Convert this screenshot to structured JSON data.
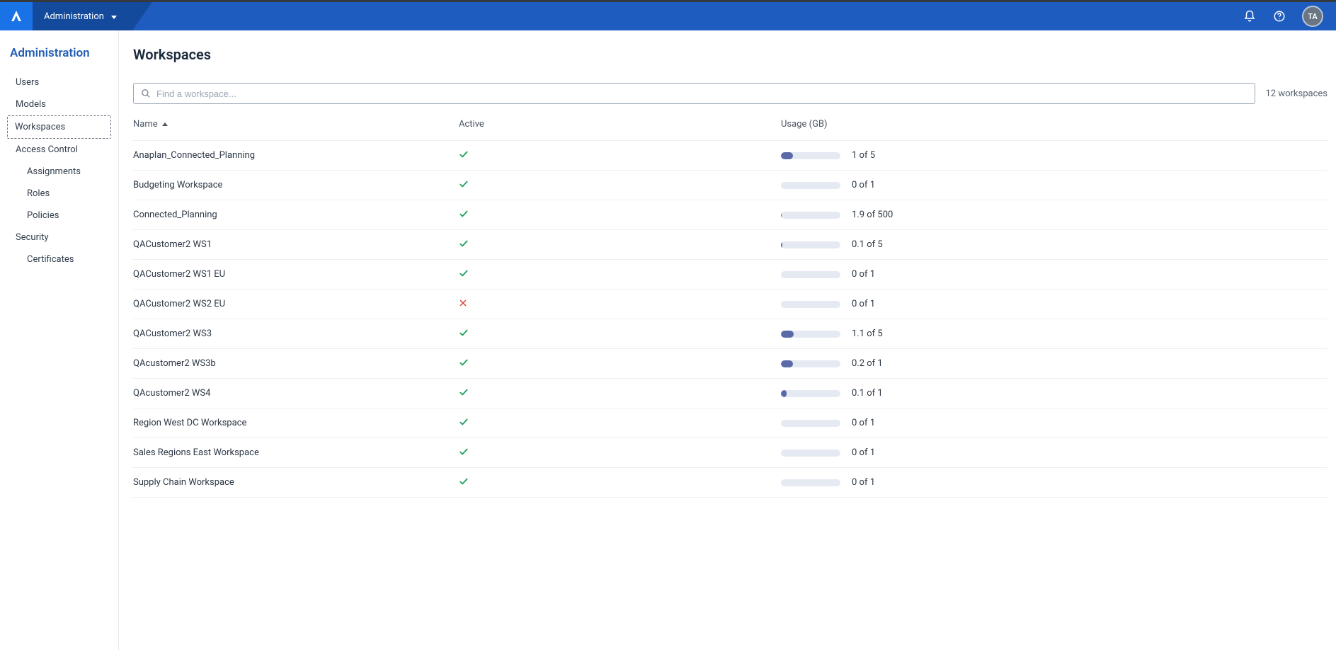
{
  "topbar": {
    "logo_letter": "A",
    "tab_label": "Administration",
    "avatar_initials": "TA"
  },
  "sidebar": {
    "title": "Administration",
    "items": [
      {
        "label": "Users",
        "selected": false,
        "children": []
      },
      {
        "label": "Models",
        "selected": false,
        "children": []
      },
      {
        "label": "Workspaces",
        "selected": true,
        "children": []
      },
      {
        "label": "Access Control",
        "selected": false,
        "children": [
          {
            "label": "Assignments"
          },
          {
            "label": "Roles"
          },
          {
            "label": "Policies"
          }
        ]
      },
      {
        "label": "Security",
        "selected": false,
        "children": [
          {
            "label": "Certificates"
          }
        ]
      }
    ]
  },
  "page": {
    "title": "Workspaces",
    "search_placeholder": "Find a workspace...",
    "count_label": "12 workspaces"
  },
  "table": {
    "columns": {
      "name": "Name",
      "active": "Active",
      "usage": "Usage (GB)"
    },
    "sort": {
      "column": "name",
      "dir": "asc"
    },
    "bar_bg": "#e5e9f2",
    "bar_fill": "#5a6aa8",
    "rows": [
      {
        "name": "Anaplan_Connected_Planning",
        "active": true,
        "usage_pct": 20,
        "usage_text": "1 of 5"
      },
      {
        "name": "Budgeting Workspace",
        "active": true,
        "usage_pct": 0,
        "usage_text": "0 of 1"
      },
      {
        "name": "Connected_Planning",
        "active": true,
        "usage_pct": 1,
        "usage_text": "1.9 of 500"
      },
      {
        "name": "QACustomer2 WS1",
        "active": true,
        "usage_pct": 2,
        "usage_text": "0.1 of 5"
      },
      {
        "name": "QACustomer2 WS1 EU",
        "active": true,
        "usage_pct": 0,
        "usage_text": "0 of 1"
      },
      {
        "name": "QACustomer2 WS2 EU",
        "active": false,
        "usage_pct": 0,
        "usage_text": "0 of 1"
      },
      {
        "name": "QACustomer2 WS3",
        "active": true,
        "usage_pct": 22,
        "usage_text": "1.1 of 5"
      },
      {
        "name": "QAcustomer2 WS3b",
        "active": true,
        "usage_pct": 20,
        "usage_text": "0.2 of 1"
      },
      {
        "name": "QAcustomer2 WS4",
        "active": true,
        "usage_pct": 10,
        "usage_text": "0.1 of 1"
      },
      {
        "name": "Region West DC Workspace",
        "active": true,
        "usage_pct": 0,
        "usage_text": "0 of 1"
      },
      {
        "name": "Sales Regions East Workspace",
        "active": true,
        "usage_pct": 0,
        "usage_text": "0 of 1"
      },
      {
        "name": "Supply Chain Workspace",
        "active": true,
        "usage_pct": 0,
        "usage_text": "0 of 1"
      }
    ]
  }
}
